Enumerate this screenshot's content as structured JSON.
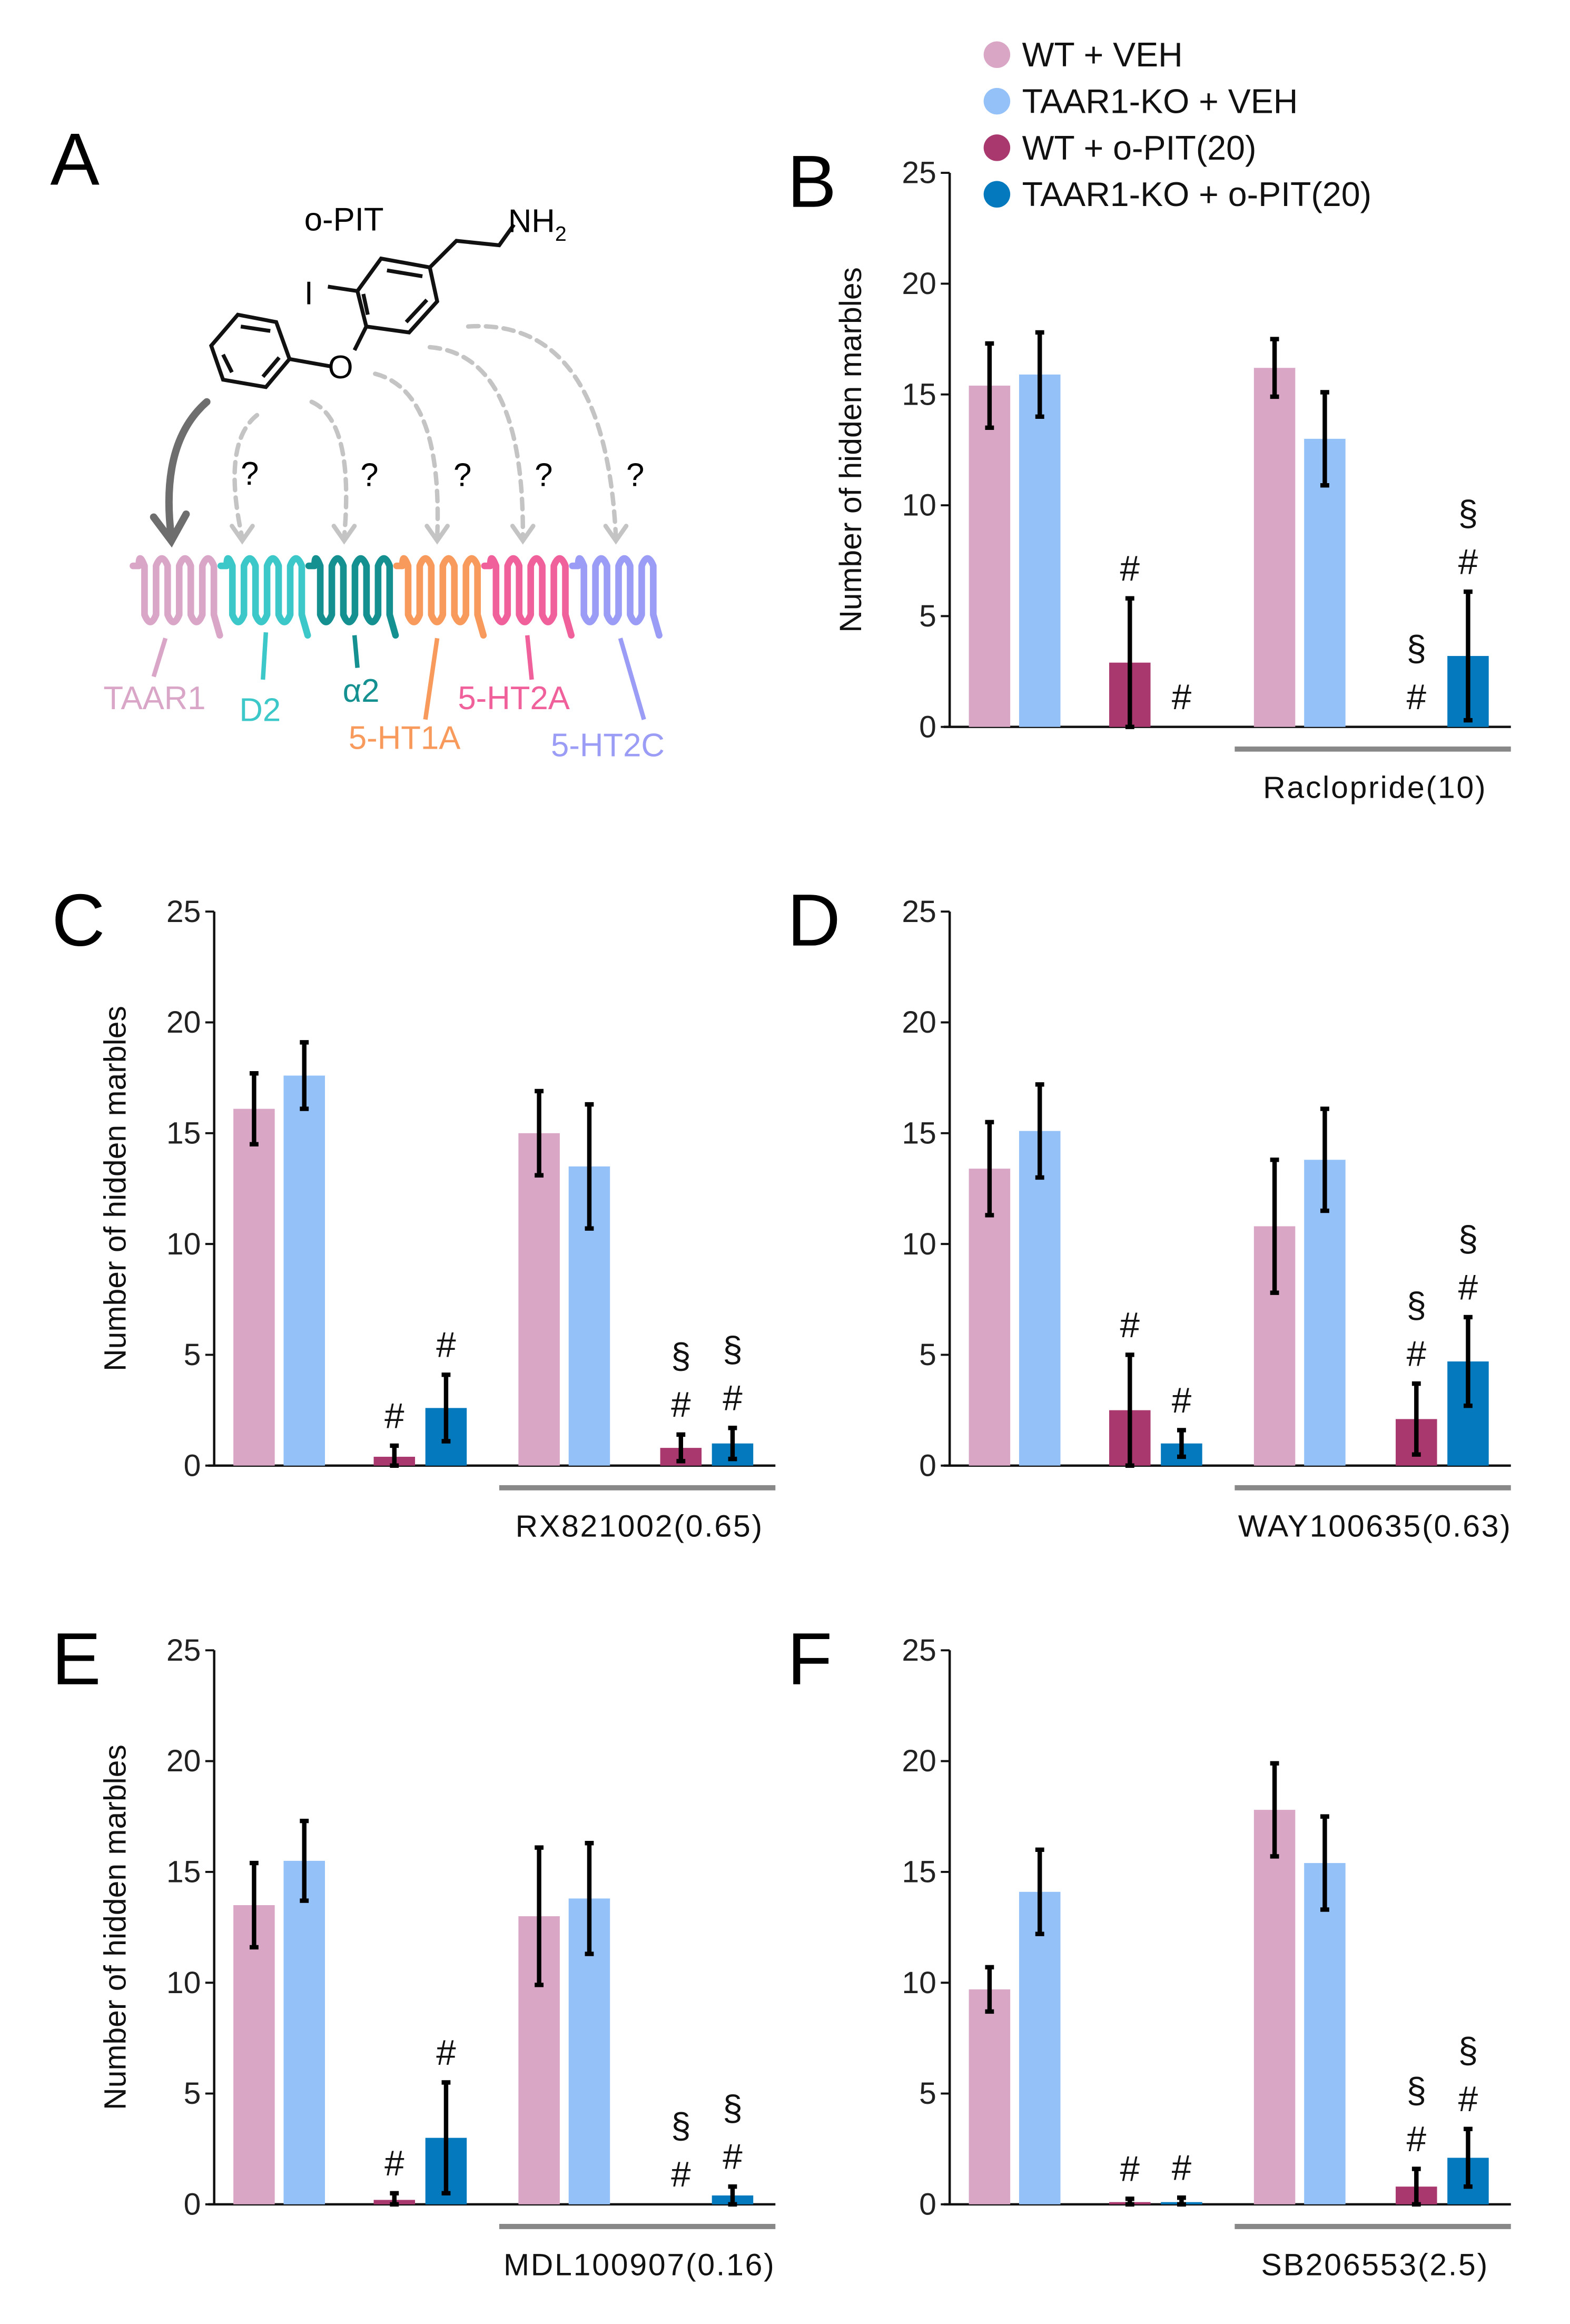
{
  "colors": [
    "#d9a6c6",
    "#93c1f8",
    "#a8386e",
    "#0479bd"
  ],
  "legend": [
    "WT + VEH",
    "TAAR1-KO + VEH",
    "WT + o-PIT(20)",
    "TAAR1-KO + o-PIT(20)"
  ],
  "panel_a": {
    "label": "A",
    "compound": "o-PIT",
    "nh2": "NH",
    "nh2_sub": "2",
    "iodine": "I",
    "oxygen": "O",
    "question": "?",
    "receptors": [
      {
        "name": "TAAR1",
        "color": "#d9a6c8"
      },
      {
        "name": "D2",
        "color": "#3cc8c8"
      },
      {
        "name": "α2",
        "color": "#149090"
      },
      {
        "name": "5-HT1A",
        "color": "#f89a5c"
      },
      {
        "name": "5-HT2A",
        "color": "#f0609a"
      },
      {
        "name": "5-HT2C",
        "color": "#9a9cf5"
      }
    ]
  },
  "chart_data": [
    {
      "panel": "B",
      "type": "bar",
      "ylabel": "Number of hidden marbles",
      "ylim": [
        0,
        25
      ],
      "yticks": [
        "0",
        "5",
        "10",
        "15",
        "20",
        "25"
      ],
      "group_label": "Raclopride(10)",
      "bars": [
        {
          "series": 0,
          "value": 15.4,
          "err": 1.9,
          "marks": []
        },
        {
          "series": 1,
          "value": 15.9,
          "err": 1.9,
          "marks": []
        },
        {
          "series": 2,
          "value": 2.9,
          "err": 2.9,
          "marks": [
            "#"
          ]
        },
        {
          "series": 3,
          "value": 0,
          "err": 0,
          "marks": [
            "#"
          ]
        },
        {
          "series": 0,
          "value": 16.2,
          "err": 1.3,
          "marks": []
        },
        {
          "series": 1,
          "value": 13.0,
          "err": 2.1,
          "marks": []
        },
        {
          "series": 2,
          "value": 0,
          "err": 0,
          "marks": [
            "#",
            "§"
          ]
        },
        {
          "series": 3,
          "value": 3.2,
          "err": 2.9,
          "marks": [
            "#",
            "§"
          ]
        }
      ]
    },
    {
      "panel": "C",
      "type": "bar",
      "ylabel": "Number of hidden marbles",
      "ylim": [
        0,
        25
      ],
      "yticks": [
        "0",
        "5",
        "10",
        "15",
        "20",
        "25"
      ],
      "group_label": "RX821002(0.65)",
      "bars": [
        {
          "series": 0,
          "value": 16.1,
          "err": 1.6,
          "marks": []
        },
        {
          "series": 1,
          "value": 17.6,
          "err": 1.5,
          "marks": []
        },
        {
          "series": 2,
          "value": 0.4,
          "err": 0.5,
          "marks": [
            "#"
          ]
        },
        {
          "series": 3,
          "value": 2.6,
          "err": 1.5,
          "marks": [
            "#"
          ]
        },
        {
          "series": 0,
          "value": 15.0,
          "err": 1.9,
          "marks": []
        },
        {
          "series": 1,
          "value": 13.5,
          "err": 2.8,
          "marks": []
        },
        {
          "series": 2,
          "value": 0.8,
          "err": 0.6,
          "marks": [
            "#",
            "§"
          ]
        },
        {
          "series": 3,
          "value": 1.0,
          "err": 0.7,
          "marks": [
            "#",
            "§"
          ]
        }
      ]
    },
    {
      "panel": "D",
      "type": "bar",
      "ylabel": "",
      "ylim": [
        0,
        25
      ],
      "yticks": [
        "0",
        "5",
        "10",
        "15",
        "20",
        "25"
      ],
      "group_label": "WAY100635(0.63)",
      "bars": [
        {
          "series": 0,
          "value": 13.4,
          "err": 2.1,
          "marks": []
        },
        {
          "series": 1,
          "value": 15.1,
          "err": 2.1,
          "marks": []
        },
        {
          "series": 2,
          "value": 2.5,
          "err": 2.5,
          "marks": [
            "#"
          ]
        },
        {
          "series": 3,
          "value": 1.0,
          "err": 0.6,
          "marks": [
            "#"
          ]
        },
        {
          "series": 0,
          "value": 10.8,
          "err": 3.0,
          "marks": []
        },
        {
          "series": 1,
          "value": 13.8,
          "err": 2.3,
          "marks": []
        },
        {
          "series": 2,
          "value": 2.1,
          "err": 1.6,
          "marks": [
            "#",
            "§"
          ]
        },
        {
          "series": 3,
          "value": 4.7,
          "err": 2.0,
          "marks": [
            "#",
            "§"
          ]
        }
      ]
    },
    {
      "panel": "E",
      "type": "bar",
      "ylabel": "Number of hidden marbles",
      "ylim": [
        0,
        25
      ],
      "yticks": [
        "0",
        "5",
        "10",
        "15",
        "20",
        "25"
      ],
      "group_label": "MDL100907(0.16)",
      "bars": [
        {
          "series": 0,
          "value": 13.5,
          "err": 1.9,
          "marks": []
        },
        {
          "series": 1,
          "value": 15.5,
          "err": 1.8,
          "marks": []
        },
        {
          "series": 2,
          "value": 0.2,
          "err": 0.3,
          "marks": [
            "#"
          ]
        },
        {
          "series": 3,
          "value": 3.0,
          "err": 2.5,
          "marks": [
            "#"
          ]
        },
        {
          "series": 0,
          "value": 13.0,
          "err": 3.1,
          "marks": []
        },
        {
          "series": 1,
          "value": 13.8,
          "err": 2.5,
          "marks": []
        },
        {
          "series": 2,
          "value": 0,
          "err": 0,
          "marks": [
            "#",
            "§"
          ]
        },
        {
          "series": 3,
          "value": 0.4,
          "err": 0.4,
          "marks": [
            "#",
            "§"
          ]
        }
      ]
    },
    {
      "panel": "F",
      "type": "bar",
      "ylabel": "",
      "ylim": [
        0,
        25
      ],
      "yticks": [
        "0",
        "5",
        "10",
        "15",
        "20",
        "25"
      ],
      "group_label": "SB206553(2.5)",
      "bars": [
        {
          "series": 0,
          "value": 9.7,
          "err": 1.0,
          "marks": []
        },
        {
          "series": 1,
          "value": 14.1,
          "err": 1.9,
          "marks": []
        },
        {
          "series": 2,
          "value": 0.1,
          "err": 0.15,
          "marks": [
            "#"
          ]
        },
        {
          "series": 3,
          "value": 0.1,
          "err": 0.2,
          "marks": [
            "#"
          ]
        },
        {
          "series": 0,
          "value": 17.8,
          "err": 2.1,
          "marks": []
        },
        {
          "series": 1,
          "value": 15.4,
          "err": 2.1,
          "marks": []
        },
        {
          "series": 2,
          "value": 0.8,
          "err": 0.8,
          "marks": [
            "#",
            "§"
          ]
        },
        {
          "series": 3,
          "value": 2.1,
          "err": 1.3,
          "marks": [
            "#",
            "§"
          ]
        }
      ]
    }
  ]
}
